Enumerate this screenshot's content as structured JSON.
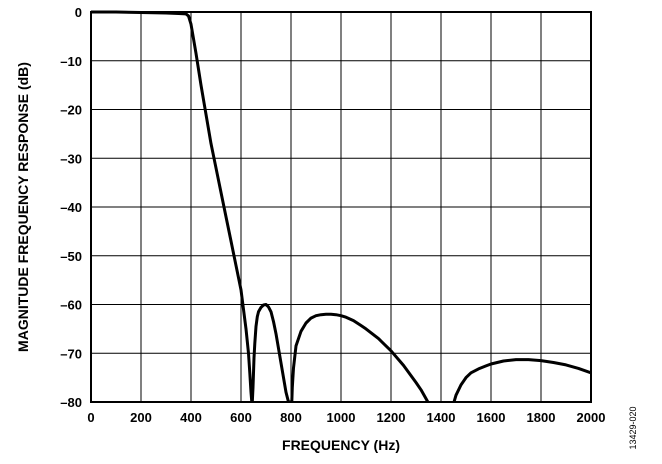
{
  "chart_data": {
    "type": "line",
    "title": "",
    "xlabel": "FREQUENCY (Hz)",
    "ylabel": "MAGNITUDE FREQUENCY RESPONSE (dB)",
    "xlim": [
      0,
      2000
    ],
    "ylim": [
      -80,
      0
    ],
    "x_ticks": [
      0,
      200,
      400,
      600,
      800,
      1000,
      1200,
      1400,
      1600,
      1800,
      2000
    ],
    "x_tick_labels": [
      "0",
      "200",
      "400",
      "600",
      "800",
      "1000",
      "1200",
      "1400",
      "1600",
      "1800",
      "2000"
    ],
    "y_ticks": [
      0,
      -10,
      -20,
      -30,
      -40,
      -50,
      -60,
      -70,
      -80
    ],
    "y_tick_labels": [
      "0",
      "–10",
      "–20",
      "–30",
      "–40",
      "–50",
      "–60",
      "–70",
      "–80"
    ],
    "grid": true,
    "series": [
      {
        "color": "#000000",
        "x": [
          0,
          100,
          200,
          300,
          350,
          380,
          390,
          400,
          410,
          420,
          440,
          460,
          480,
          500,
          520,
          540,
          560,
          580,
          600,
          610,
          620,
          630,
          635,
          640,
          643,
          645,
          648,
          650,
          652,
          655,
          660,
          665,
          670,
          680,
          690,
          700,
          710,
          720,
          730,
          740,
          750,
          760,
          770,
          780,
          790,
          795,
          797,
          800,
          803,
          805,
          810,
          820,
          840,
          860,
          880,
          900,
          920,
          940,
          960,
          980,
          1000,
          1020,
          1050,
          1080,
          1100,
          1150,
          1200,
          1250,
          1300,
          1320,
          1340,
          1345,
          1348
        ],
        "y": [
          0,
          0,
          -0.1,
          -0.2,
          -0.3,
          -0.4,
          -0.8,
          -2.5,
          -5.5,
          -8.5,
          -15,
          -21,
          -27,
          -32,
          -37,
          -42,
          -47,
          -52,
          -57,
          -61,
          -65,
          -70,
          -74,
          -78,
          -80,
          -80,
          -77,
          -74,
          -71,
          -68,
          -64.5,
          -62.5,
          -61.5,
          -60.6,
          -60.1,
          -60.0,
          -60.5,
          -61.5,
          -63.5,
          -66,
          -69,
          -72,
          -75,
          -78,
          -80,
          -80,
          -80,
          -80,
          -80,
          -77,
          -73,
          -68.5,
          -65.5,
          -63.8,
          -62.8,
          -62.3,
          -62.1,
          -62.0,
          -62.0,
          -62.1,
          -62.3,
          -62.6,
          -63.3,
          -64.3,
          -65.0,
          -67.0,
          -69.5,
          -72.5,
          -76,
          -77.5,
          -79.3,
          -79.8,
          -80
        ]
      },
      {
        "color": "#000000",
        "x": [
          1452,
          1460,
          1480,
          1500,
          1520,
          1550,
          1580,
          1600,
          1650,
          1700,
          1750,
          1800,
          1850,
          1900,
          1950,
          2000
        ],
        "y": [
          -80,
          -78.6,
          -76.5,
          -75,
          -74,
          -73.2,
          -72.6,
          -72.2,
          -71.6,
          -71.3,
          -71.3,
          -71.5,
          -71.9,
          -72.4,
          -73.1,
          -74
        ]
      }
    ]
  },
  "figure_id": "13429-020"
}
